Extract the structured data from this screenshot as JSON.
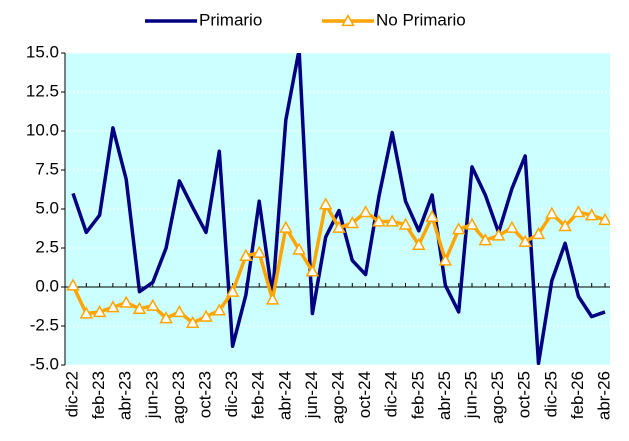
{
  "chart_data": {
    "type": "line",
    "categories": [
      "dic-22",
      null,
      "feb-23",
      null,
      "abr-23",
      null,
      "jun-23",
      null,
      "ago-23",
      null,
      "oct-23",
      null,
      "dic-23",
      null,
      "feb-24",
      null,
      "abr-24",
      null,
      "jun-24",
      null,
      "ago-24",
      null,
      "oct-24",
      null,
      "dic-24",
      null,
      "feb-25",
      null,
      "abr-25",
      null,
      "jun-25",
      null,
      "ago-25",
      null,
      "oct-25",
      null,
      "dic-25",
      null,
      "feb-26",
      null,
      "abr-26"
    ],
    "series": [
      {
        "name": "Primario",
        "color": "#000080",
        "values": [
          6.0,
          3.5,
          4.6,
          10.2,
          6.9,
          -0.3,
          0.3,
          2.5,
          6.8,
          5.1,
          3.5,
          8.7,
          -3.8,
          -0.5,
          5.5,
          -0.6,
          10.7,
          15.2,
          -1.7,
          3.2,
          4.9,
          1.7,
          0.8,
          5.8,
          9.9,
          5.5,
          3.6,
          5.9,
          0.1,
          -1.6,
          7.7,
          5.9,
          3.5,
          6.3,
          8.4,
          -4.9,
          0.4,
          2.8,
          -0.6,
          -1.9,
          -1.6
        ]
      },
      {
        "name": "No Primario",
        "color": "#ffa500",
        "values": [
          0.1,
          -1.7,
          -1.6,
          -1.3,
          -1.0,
          -1.4,
          -1.2,
          -2.0,
          -1.6,
          -2.3,
          -1.9,
          -1.5,
          -0.3,
          2.0,
          2.2,
          -0.8,
          3.8,
          2.4,
          1.0,
          5.3,
          3.8,
          4.1,
          4.8,
          4.2,
          4.2,
          4.0,
          2.7,
          4.5,
          1.7,
          3.7,
          4.0,
          3.0,
          3.3,
          3.8,
          2.9,
          3.4,
          4.7,
          3.9,
          4.8,
          4.6,
          4.3
        ]
      }
    ],
    "ylim": [
      -5,
      15
    ],
    "yticks": [
      {
        "value": -5,
        "label": "-5.0"
      },
      -2.5,
      {
        "value": 0,
        "label": "0.0"
      },
      2.5,
      {
        "value": 5,
        "label": "5.0"
      },
      7.5,
      {
        "value": 10,
        "label": "10.0"
      },
      12.5,
      {
        "value": 15,
        "label": "15.0"
      }
    ],
    "grid": true,
    "background": "#ccffff"
  }
}
